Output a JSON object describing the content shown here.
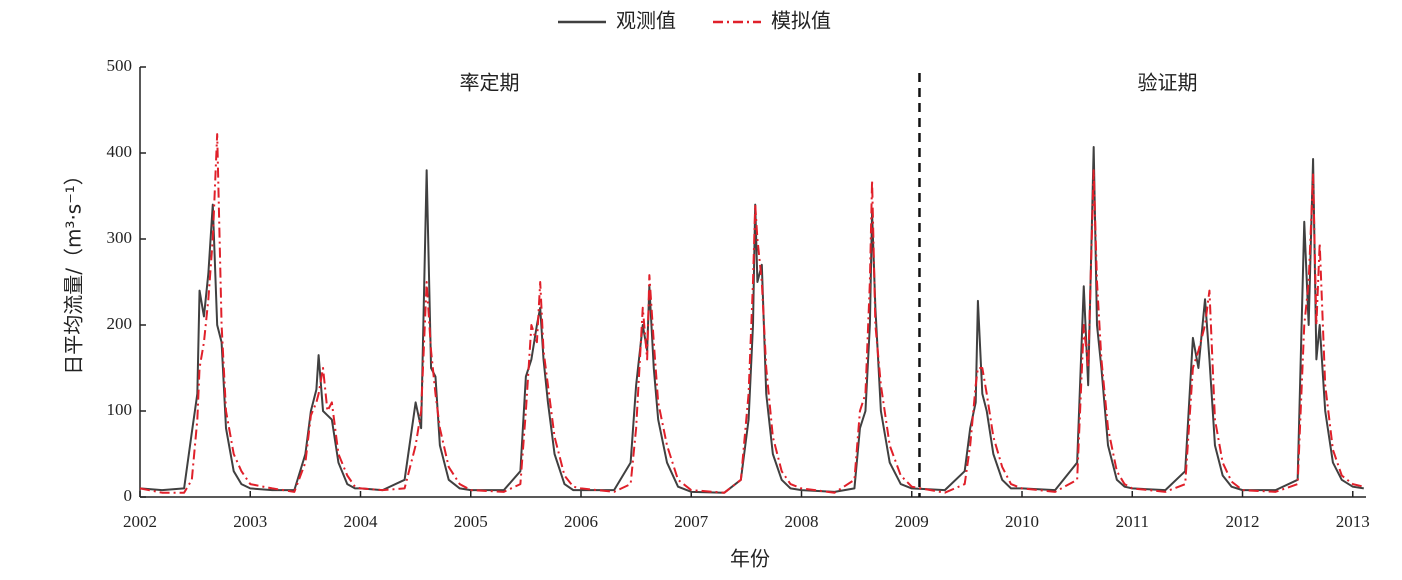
{
  "chart_data": {
    "type": "line",
    "xlabel": "年份",
    "ylabel": "日平均流量/（m³·s⁻¹）",
    "xlim": [
      2002,
      2013.12
    ],
    "xticks": [
      2002,
      2003,
      2004,
      2005,
      2006,
      2007,
      2008,
      2009,
      2010,
      2011,
      2012,
      2013
    ],
    "ylim": [
      0,
      500
    ],
    "yticks": [
      0,
      100,
      200,
      300,
      400,
      500
    ],
    "legend": "top",
    "divider_x": 2009.07,
    "annotations": [
      {
        "text": "率定期",
        "x": 2005.17,
        "y": 480
      },
      {
        "text": "验证期",
        "x": 2011.32,
        "y": 480
      }
    ],
    "x": [
      2002.0,
      2002.2,
      2002.4,
      2002.47,
      2002.52,
      2002.54,
      2002.58,
      2002.62,
      2002.66,
      2002.7,
      2002.74,
      2002.78,
      2002.85,
      2002.92,
      2003.0,
      2003.2,
      2003.4,
      2003.5,
      2003.55,
      2003.6,
      2003.62,
      2003.66,
      2003.7,
      2003.74,
      2003.8,
      2003.88,
      2003.95,
      2004.0,
      2004.2,
      2004.4,
      2004.5,
      2004.55,
      2004.6,
      2004.64,
      2004.68,
      2004.72,
      2004.8,
      2004.9,
      2005.0,
      2005.3,
      2005.45,
      2005.5,
      2005.55,
      2005.6,
      2005.63,
      2005.66,
      2005.7,
      2005.76,
      2005.85,
      2005.93,
      2006.0,
      2006.3,
      2006.45,
      2006.5,
      2006.56,
      2006.6,
      2006.62,
      2006.66,
      2006.7,
      2006.78,
      2006.88,
      2007.0,
      2007.3,
      2007.45,
      2007.52,
      2007.56,
      2007.58,
      2007.6,
      2007.64,
      2007.68,
      2007.74,
      2007.82,
      2007.9,
      2008.0,
      2008.3,
      2008.48,
      2008.53,
      2008.58,
      2008.62,
      2008.64,
      2008.67,
      2008.72,
      2008.8,
      2008.9,
      2009.0,
      2009.3,
      2009.48,
      2009.53,
      2009.58,
      2009.6,
      2009.64,
      2009.68,
      2009.74,
      2009.82,
      2009.9,
      2010.0,
      2010.3,
      2010.5,
      2010.56,
      2010.6,
      2010.65,
      2010.68,
      2010.72,
      2010.78,
      2010.86,
      2010.93,
      2011.0,
      2011.3,
      2011.48,
      2011.55,
      2011.6,
      2011.66,
      2011.7,
      2011.75,
      2011.82,
      2011.9,
      2012.0,
      2012.3,
      2012.5,
      2012.56,
      2012.6,
      2012.64,
      2012.67,
      2012.7,
      2012.75,
      2012.82,
      2012.9,
      2013.0,
      2013.1
    ],
    "series": [
      {
        "name": "观测值",
        "color": "#404040",
        "dash": "none",
        "values": [
          10,
          8,
          10,
          75,
          120,
          240,
          210,
          260,
          340,
          200,
          180,
          80,
          30,
          15,
          10,
          8,
          8,
          50,
          100,
          125,
          165,
          100,
          95,
          90,
          40,
          15,
          10,
          10,
          8,
          20,
          110,
          80,
          380,
          150,
          140,
          60,
          20,
          10,
          8,
          8,
          30,
          140,
          160,
          200,
          220,
          160,
          110,
          50,
          15,
          8,
          8,
          8,
          40,
          130,
          200,
          170,
          245,
          150,
          90,
          40,
          12,
          6,
          5,
          20,
          90,
          200,
          340,
          250,
          270,
          120,
          50,
          20,
          10,
          8,
          6,
          10,
          80,
          100,
          200,
          330,
          220,
          100,
          40,
          15,
          10,
          8,
          30,
          80,
          110,
          228,
          120,
          100,
          50,
          20,
          10,
          10,
          8,
          40,
          245,
          130,
          407,
          200,
          150,
          60,
          20,
          12,
          10,
          8,
          30,
          185,
          150,
          230,
          160,
          60,
          25,
          12,
          8,
          8,
          20,
          320,
          200,
          393,
          160,
          200,
          100,
          40,
          20,
          12,
          10
        ]
      },
      {
        "name": "模拟值",
        "color": "#e0202a",
        "dash": "10 4 2 4",
        "values": [
          10,
          5,
          5,
          20,
          90,
          150,
          180,
          230,
          300,
          422,
          200,
          100,
          50,
          30,
          15,
          10,
          6,
          40,
          95,
          110,
          120,
          150,
          100,
          110,
          50,
          25,
          12,
          10,
          8,
          10,
          60,
          100,
          250,
          170,
          120,
          80,
          35,
          15,
          8,
          6,
          15,
          100,
          200,
          180,
          250,
          170,
          130,
          70,
          25,
          12,
          10,
          6,
          15,
          80,
          220,
          160,
          258,
          180,
          110,
          60,
          20,
          8,
          5,
          20,
          120,
          250,
          340,
          300,
          250,
          150,
          70,
          30,
          15,
          10,
          5,
          20,
          100,
          120,
          250,
          368,
          200,
          130,
          60,
          25,
          12,
          5,
          15,
          60,
          130,
          150,
          150,
          120,
          70,
          35,
          15,
          10,
          6,
          20,
          200,
          150,
          380,
          250,
          160,
          80,
          30,
          15,
          10,
          6,
          15,
          150,
          170,
          200,
          240,
          90,
          40,
          18,
          8,
          6,
          15,
          200,
          250,
          375,
          200,
          295,
          130,
          55,
          25,
          15,
          12
        ]
      }
    ]
  }
}
